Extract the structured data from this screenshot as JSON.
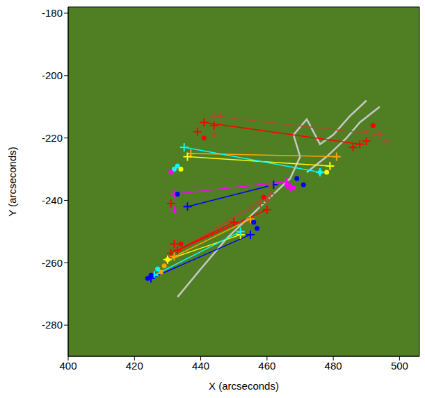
{
  "chart_data": {
    "type": "scatter",
    "xlabel": "X (arcseconds)",
    "ylabel": "Y (arcseconds)",
    "xlim": [
      400,
      506
    ],
    "ylim": [
      -290,
      -178
    ],
    "xticks": [
      400,
      420,
      440,
      460,
      480,
      500
    ],
    "yticks": [
      -280,
      -260,
      -240,
      -220,
      -200,
      -180
    ],
    "background": "#4f7f22",
    "series": [
      {
        "type": "line",
        "line_style": "solid",
        "color": "#c8c8c8",
        "x": [
          433,
          440,
          448,
          455,
          462,
          467,
          470,
          468,
          472,
          476,
          480,
          485,
          490
        ],
        "y": [
          -271,
          -262,
          -252,
          -245,
          -238,
          -233,
          -226,
          -219,
          -214,
          -222,
          -219,
          -213,
          -208
        ]
      },
      {
        "type": "line",
        "line_style": "solid",
        "color": "#c8c8c8",
        "x": [
          472,
          478,
          484,
          488,
          494
        ],
        "y": [
          -231,
          -226,
          -220,
          -215,
          -210
        ]
      },
      {
        "type": "line",
        "line_style": "solid",
        "color": "#a0522d",
        "x": [
          444,
          494
        ],
        "y": [
          -213,
          -219
        ]
      },
      {
        "type": "line",
        "line_style": "solid",
        "color": "#ff0000",
        "x": [
          441,
          488
        ],
        "y": [
          -215,
          -222
        ]
      },
      {
        "type": "line",
        "line_style": "solid",
        "color": "#ffa500",
        "x": [
          437,
          481
        ],
        "y": [
          -225,
          -226
        ]
      },
      {
        "type": "line",
        "line_style": "solid",
        "color": "#ffff00",
        "x": [
          436,
          479
        ],
        "y": [
          -226,
          -229
        ]
      },
      {
        "type": "line",
        "line_style": "solid",
        "color": "#00ffff",
        "x": [
          435,
          476
        ],
        "y": [
          -223,
          -231
        ]
      },
      {
        "type": "line",
        "line_style": "solid",
        "color": "#ff00ff",
        "x": [
          432,
          466
        ],
        "y": [
          -238,
          -234
        ]
      },
      {
        "type": "line",
        "line_style": "solid",
        "color": "#0000ff",
        "x": [
          436,
          462
        ],
        "y": [
          -242,
          -235
        ]
      },
      {
        "type": "line",
        "line_style": "solid",
        "color": "#a0522d",
        "x": [
          431,
          461
        ],
        "y": [
          -258,
          -238
        ]
      },
      {
        "type": "line",
        "line_style": "solid",
        "color": "#a0522d",
        "x": [
          433,
          458
        ],
        "y": [
          -256,
          -241
        ]
      },
      {
        "type": "line",
        "line_style": "solid",
        "color": "#ff0000",
        "x": [
          433,
          460
        ],
        "y": [
          -256,
          -243
        ]
      },
      {
        "type": "line",
        "line_style": "solid",
        "color": "#ffa500",
        "x": [
          432,
          455
        ],
        "y": [
          -258,
          -246
        ]
      },
      {
        "type": "line",
        "line_style": "solid",
        "color": "#ffff00",
        "x": [
          430,
          452
        ],
        "y": [
          -259,
          -251
        ]
      },
      {
        "type": "line",
        "line_style": "solid",
        "color": "#00ffff",
        "x": [
          426,
          452
        ],
        "y": [
          -264,
          -250
        ]
      },
      {
        "type": "line",
        "line_style": "solid",
        "color": "#0000ff",
        "x": [
          425,
          455
        ],
        "y": [
          -265,
          -251
        ]
      },
      {
        "type": "line",
        "line_style": "solid",
        "color": "#ff0000",
        "x": [
          431,
          450
        ],
        "y": [
          -257,
          -247
        ]
      },
      {
        "type": "scatter",
        "marker": "plus",
        "color": "#a0522d",
        "x": [
          444,
          446,
          494,
          496,
          461,
          458,
          431,
          433
        ],
        "y": [
          -213,
          -213,
          -219,
          -221,
          -238,
          -241,
          -258,
          -256
        ]
      },
      {
        "type": "scatter",
        "marker": "plus",
        "color": "#ff0000",
        "x": [
          441,
          444,
          439,
          488,
          486,
          490,
          460,
          433,
          431,
          432,
          450,
          431
        ],
        "y": [
          -215,
          -216,
          -218,
          -222,
          -223,
          -221,
          -243,
          -256,
          -257,
          -254,
          -247,
          -241
        ]
      },
      {
        "type": "scatter",
        "marker": "plus",
        "color": "#ffa500",
        "x": [
          437,
          481,
          455,
          432
        ],
        "y": [
          -225,
          -226,
          -246,
          -258
        ]
      },
      {
        "type": "scatter",
        "marker": "plus",
        "color": "#ffff00",
        "x": [
          436,
          479,
          452,
          430
        ],
        "y": [
          -226,
          -229,
          -251,
          -259
        ]
      },
      {
        "type": "scatter",
        "marker": "plus",
        "color": "#00ffff",
        "x": [
          435,
          476,
          452,
          426
        ],
        "y": [
          -223,
          -231,
          -250,
          -264
        ]
      },
      {
        "type": "scatter",
        "marker": "plus",
        "color": "#ff00ff",
        "x": [
          432,
          466,
          432,
          467
        ],
        "y": [
          -238,
          -234,
          -243,
          -236
        ]
      },
      {
        "type": "scatter",
        "marker": "plus",
        "color": "#0000ff",
        "x": [
          436,
          462,
          455,
          425
        ],
        "y": [
          -242,
          -235,
          -251,
          -265
        ]
      },
      {
        "type": "scatter",
        "marker": "circle",
        "color": "#a0522d",
        "x": [
          444,
          490,
          461,
          460
        ],
        "y": [
          -219,
          -218,
          -235,
          -240
        ]
      },
      {
        "type": "scatter",
        "marker": "circle",
        "color": "#ff0000",
        "x": [
          441,
          492,
          434,
          459
        ],
        "y": [
          -220,
          -216,
          -254,
          -239
        ]
      },
      {
        "type": "scatter",
        "marker": "circle",
        "color": "#ffa500",
        "x": [
          429,
          428
        ],
        "y": [
          -261,
          -263
        ]
      },
      {
        "type": "scatter",
        "marker": "circle",
        "color": "#ffff00",
        "x": [
          434,
          478,
          430
        ],
        "y": [
          -230,
          -231,
          -259
        ]
      },
      {
        "type": "scatter",
        "marker": "circle",
        "color": "#00ffff",
        "x": [
          433,
          432,
          476,
          427
        ],
        "y": [
          -229,
          -230,
          -231,
          -262
        ]
      },
      {
        "type": "scatter",
        "marker": "circle",
        "color": "#ff00ff",
        "x": [
          431,
          466,
          468
        ],
        "y": [
          -231,
          -235,
          -236
        ]
      },
      {
        "type": "scatter",
        "marker": "circle",
        "color": "#0000ff",
        "x": [
          433,
          469,
          471,
          456,
          457,
          424,
          425
        ],
        "y": [
          -238,
          -233,
          -235,
          -247,
          -249,
          -265,
          -264
        ]
      }
    ]
  }
}
